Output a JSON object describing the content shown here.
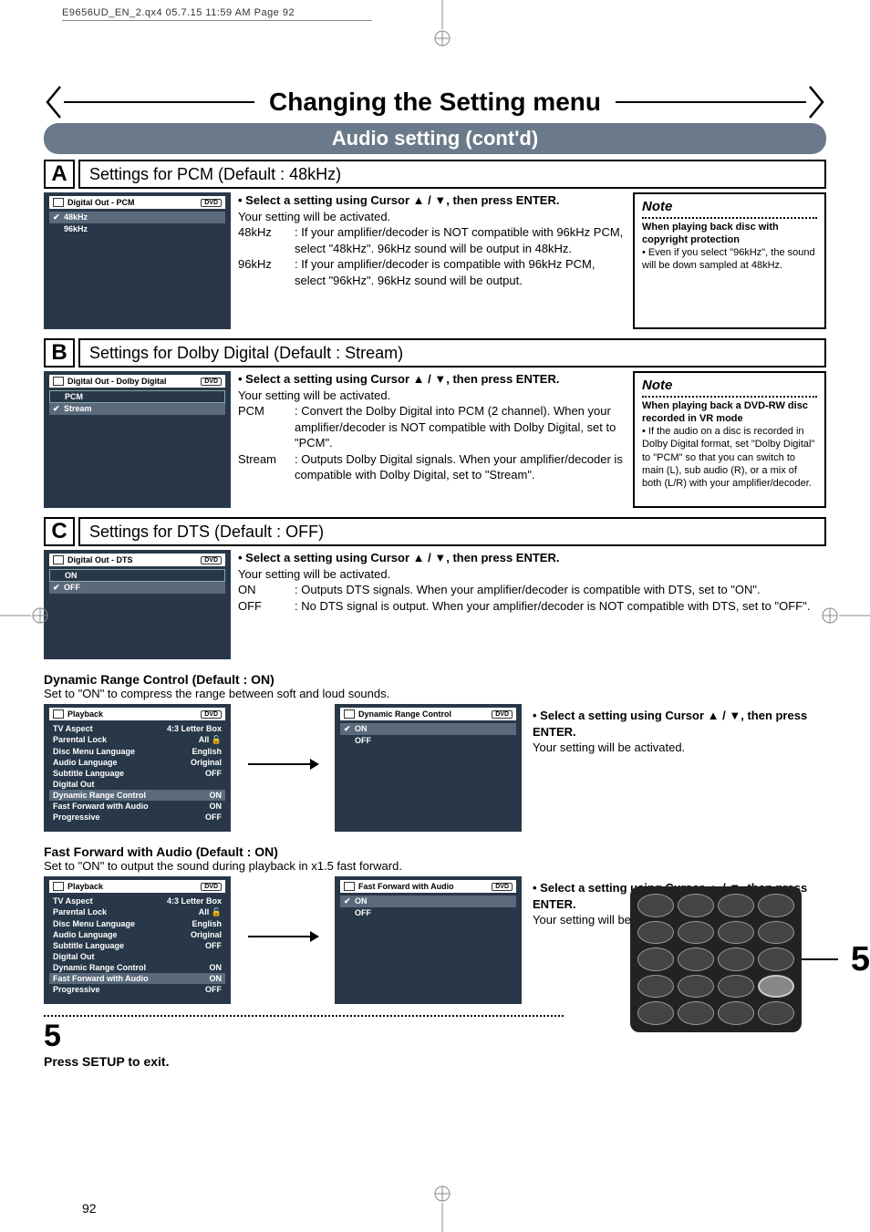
{
  "header_meta": "E9656UD_EN_2.qx4  05.7.15  11:59 AM  Page 92",
  "main_title": "Changing the Setting menu",
  "sub_title": "Audio setting (cont'd)",
  "colors": {
    "subbar_bg": "#6b7a8a",
    "screen_bg": "#283848",
    "screen_hl": "#5a6a7a"
  },
  "sections": {
    "A": {
      "letter": "A",
      "title": "Settings for PCM (Default : 48kHz)",
      "screen": {
        "title": "Digital Out - PCM",
        "badge": "DVD",
        "rows": [
          {
            "label": "48kHz",
            "checked": true,
            "hl": true
          },
          {
            "label": "96kHz",
            "checked": false
          }
        ]
      },
      "instr_bullet": "• Select a setting using Cursor ▲ / ▼, then press ENTER.",
      "instr_sub": "Your setting will be activated.",
      "items": [
        {
          "key": "48kHz",
          "text": ": If your amplifier/decoder is NOT compatible with 96kHz PCM, select \"48kHz\". 96kHz sound will be output in 48kHz."
        },
        {
          "key": "96kHz",
          "text": ": If your amplifier/decoder is compatible with 96kHz PCM, select \"96kHz\". 96kHz sound will be output."
        }
      ],
      "note_title": "Note",
      "note_sub": "When playing back disc with copyright protection",
      "note_text": "• Even if you select \"96kHz\", the sound will be down sampled at 48kHz."
    },
    "B": {
      "letter": "B",
      "title": "Settings for Dolby Digital (Default : Stream)",
      "screen": {
        "title": "Digital Out - Dolby Digital",
        "badge": "DVD",
        "rows": [
          {
            "label": "PCM",
            "checked": false,
            "boxed": true
          },
          {
            "label": "Stream",
            "checked": true,
            "hl": true
          }
        ]
      },
      "instr_bullet": "• Select a setting using Cursor ▲ / ▼, then press ENTER.",
      "instr_sub": "Your setting will be activated.",
      "items": [
        {
          "key": "PCM",
          "text": ": Convert the Dolby Digital into PCM (2 channel). When your amplifier/decoder is NOT compatible with Dolby Digital, set to \"PCM\"."
        },
        {
          "key": "Stream",
          "text": ": Outputs Dolby Digital signals. When your amplifier/decoder is compatible with Dolby Digital, set to \"Stream\"."
        }
      ],
      "note_title": "Note",
      "note_sub": "When playing back a DVD-RW disc recorded in VR mode",
      "note_text": "• If the audio on a disc is recorded in Dolby Digital format, set \"Dolby Digital\" to \"PCM\" so that you can switch to main (L), sub audio (R), or a mix of both (L/R) with your amplifier/decoder."
    },
    "C": {
      "letter": "C",
      "title": "Settings for DTS (Default : OFF)",
      "screen": {
        "title": "Digital Out - DTS",
        "badge": "DVD",
        "rows": [
          {
            "label": "ON",
            "checked": false,
            "boxed": true
          },
          {
            "label": "OFF",
            "checked": true,
            "hl": true
          }
        ]
      },
      "instr_bullet": "• Select a setting using Cursor ▲ / ▼, then press ENTER.",
      "instr_sub": "Your setting will be activated.",
      "items": [
        {
          "key": "ON",
          "text": ": Outputs DTS signals. When your amplifier/decoder is compatible with DTS, set to \"ON\"."
        },
        {
          "key": "OFF",
          "text": ": No DTS signal is output. When your amplifier/decoder is NOT compatible with DTS, set to \"OFF\"."
        }
      ]
    }
  },
  "drc": {
    "heading": "Dynamic Range Control (Default : ON)",
    "sub": "Set to \"ON\" to compress the range between soft and loud sounds.",
    "playback_title": "Playback",
    "playback_badge": "DVD",
    "playback_rows": [
      {
        "label": "TV Aspect",
        "value": "4:3 Letter Box"
      },
      {
        "label": "Parental Lock",
        "value": "All 🔓"
      },
      {
        "label": "Disc Menu Language",
        "value": "English"
      },
      {
        "label": "Audio Language",
        "value": "Original"
      },
      {
        "label": "Subtitle Language",
        "value": "OFF"
      },
      {
        "label": "Digital Out",
        "value": ""
      },
      {
        "label": "Dynamic Range Control",
        "value": "ON",
        "hl": true
      },
      {
        "label": "Fast Forward with Audio",
        "value": "ON"
      },
      {
        "label": "Progressive",
        "value": "OFF"
      }
    ],
    "panel_title": "Dynamic Range Control",
    "panel_rows": [
      {
        "label": "ON",
        "checked": true,
        "hl": true
      },
      {
        "label": "OFF",
        "checked": false
      }
    ],
    "right_bullet": "• Select a setting using Cursor ▲ / ▼, then press ENTER.",
    "right_sub": "Your setting will be activated."
  },
  "ffwa": {
    "heading": "Fast Forward with Audio (Default : ON)",
    "sub": "Set to \"ON\" to output the sound during playback in x1.5 fast forward.",
    "playback_title": "Playback",
    "playback_badge": "DVD",
    "playback_rows": [
      {
        "label": "TV Aspect",
        "value": "4:3 Letter Box"
      },
      {
        "label": "Parental Lock",
        "value": "All 🔓"
      },
      {
        "label": "Disc Menu Language",
        "value": "English"
      },
      {
        "label": "Audio Language",
        "value": "Original"
      },
      {
        "label": "Subtitle Language",
        "value": "OFF"
      },
      {
        "label": "Digital Out",
        "value": ""
      },
      {
        "label": "Dynamic Range Control",
        "value": "ON"
      },
      {
        "label": "Fast Forward with Audio",
        "value": "ON",
        "hl": true
      },
      {
        "label": "Progressive",
        "value": "OFF"
      }
    ],
    "panel_title": "Fast Forward with Audio",
    "panel_rows": [
      {
        "label": "ON",
        "checked": true,
        "hl": true
      },
      {
        "label": "OFF",
        "checked": false
      }
    ],
    "right_bullet": "• Select a setting using Cursor ▲ / ▼, then press ENTER.",
    "right_sub": "Your setting will be activated."
  },
  "step5": {
    "num": "5",
    "text": "Press SETUP to exit."
  },
  "callout_num": "5",
  "page_num": "92"
}
